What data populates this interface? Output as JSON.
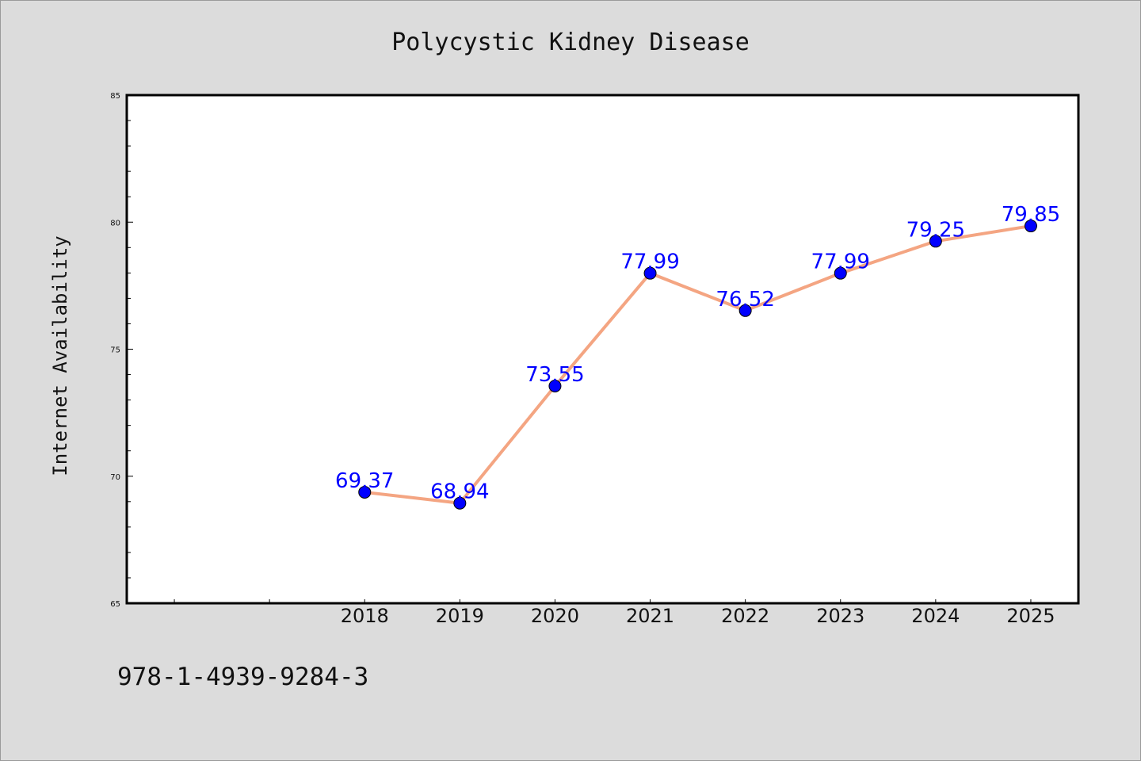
{
  "colors": {
    "background": "#dcdcdc",
    "plot_background": "#ffffff",
    "line": "#f4a582",
    "marker": "#0000ff",
    "data_label": "#0000ff"
  },
  "footer_text": "978-1-4939-9284-3",
  "chart_data": {
    "type": "line",
    "title": "Polycystic Kidney Disease",
    "xlabel": "",
    "ylabel": "Internet Availability",
    "x": [
      "2018",
      "2019",
      "2020",
      "2021",
      "2022",
      "2023",
      "2024",
      "2025"
    ],
    "series": [
      {
        "values": [
          69.37,
          68.94,
          73.55,
          77.99,
          76.52,
          77.99,
          79.25,
          79.85
        ]
      }
    ],
    "data_labels": [
      "69.37",
      "68.94",
      "73.55",
      "77.99",
      "76.52",
      "77.99",
      "79.25",
      "79.85"
    ],
    "y_ticks": [
      "65",
      "70",
      "75",
      "80",
      "85"
    ],
    "ylim": [
      65,
      85
    ],
    "x_slots": 10,
    "grid": false,
    "legend": "none"
  }
}
